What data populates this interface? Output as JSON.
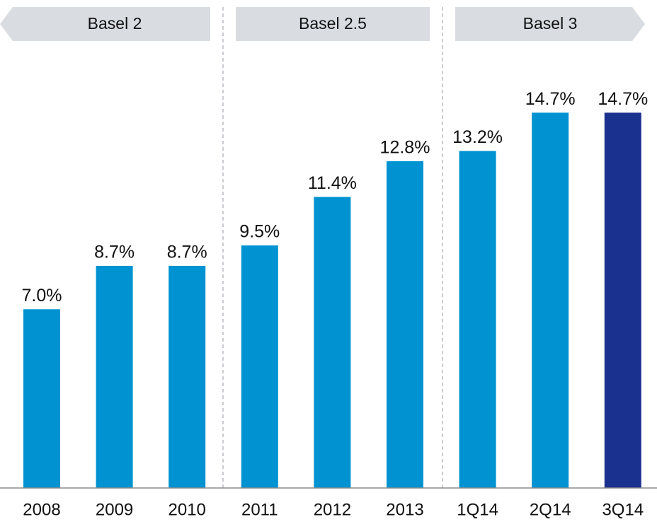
{
  "chart_data": {
    "type": "bar",
    "categories": [
      "2008",
      "2009",
      "2010",
      "2011",
      "2012",
      "2013",
      "1Q14",
      "2Q14",
      "3Q14"
    ],
    "values": [
      7.0,
      8.7,
      8.7,
      9.5,
      11.4,
      12.8,
      13.2,
      14.7,
      14.7
    ],
    "value_labels": [
      "7.0%",
      "8.7%",
      "8.7%",
      "9.5%",
      "11.4%",
      "12.8%",
      "13.2%",
      "14.7%",
      "14.7%"
    ],
    "colors": [
      "#0092d1",
      "#0092d1",
      "#0092d1",
      "#0092d1",
      "#0092d1",
      "#0092d1",
      "#0092d1",
      "#0092d1",
      "#1b3190"
    ],
    "annotations": [
      "Basel 2",
      "Basel 2.5",
      "Basel 3"
    ]
  }
}
